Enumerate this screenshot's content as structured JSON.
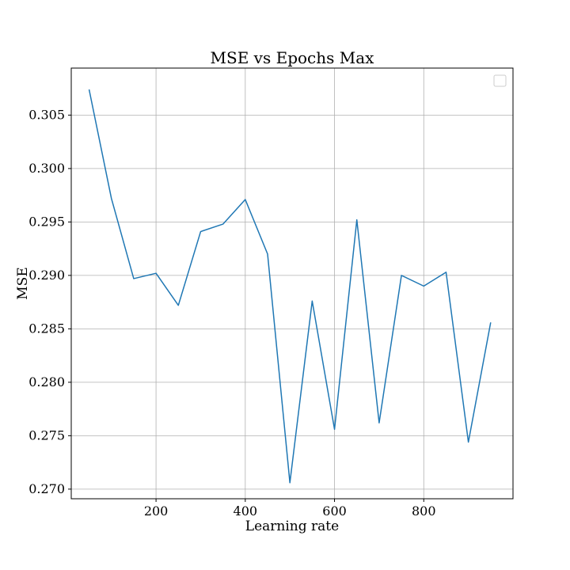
{
  "chart_data": {
    "type": "line",
    "title": "MSE vs Epochs Max",
    "xlabel": "Learning rate",
    "ylabel": "MSE",
    "xlim": [
      10,
      1000
    ],
    "ylim": [
      0.2691,
      0.3094
    ],
    "xticks": [
      200,
      400,
      600,
      800
    ],
    "xtick_labels": [
      "200",
      "400",
      "600",
      "800"
    ],
    "yticks": [
      0.27,
      0.275,
      0.28,
      0.285,
      0.29,
      0.295,
      0.3,
      0.305
    ],
    "ytick_labels": [
      "0.270",
      "0.275",
      "0.280",
      "0.285",
      "0.290",
      "0.295",
      "0.300",
      "0.305"
    ],
    "grid": true,
    "legend": "top-right",
    "line_color": "#1f77b4",
    "series": [
      {
        "x": [
          50,
          100,
          150,
          200,
          250,
          300,
          350,
          400,
          450,
          500,
          550,
          600,
          650,
          700,
          750,
          800,
          850,
          900,
          950
        ],
        "values": [
          0.3074,
          0.2972,
          0.2897,
          0.2902,
          0.2872,
          0.2941,
          0.2948,
          0.2971,
          0.292,
          0.2706,
          0.2876,
          0.2756,
          0.2952,
          0.2762,
          0.29,
          0.289,
          0.2903,
          0.2744,
          0.2856
        ]
      }
    ]
  }
}
